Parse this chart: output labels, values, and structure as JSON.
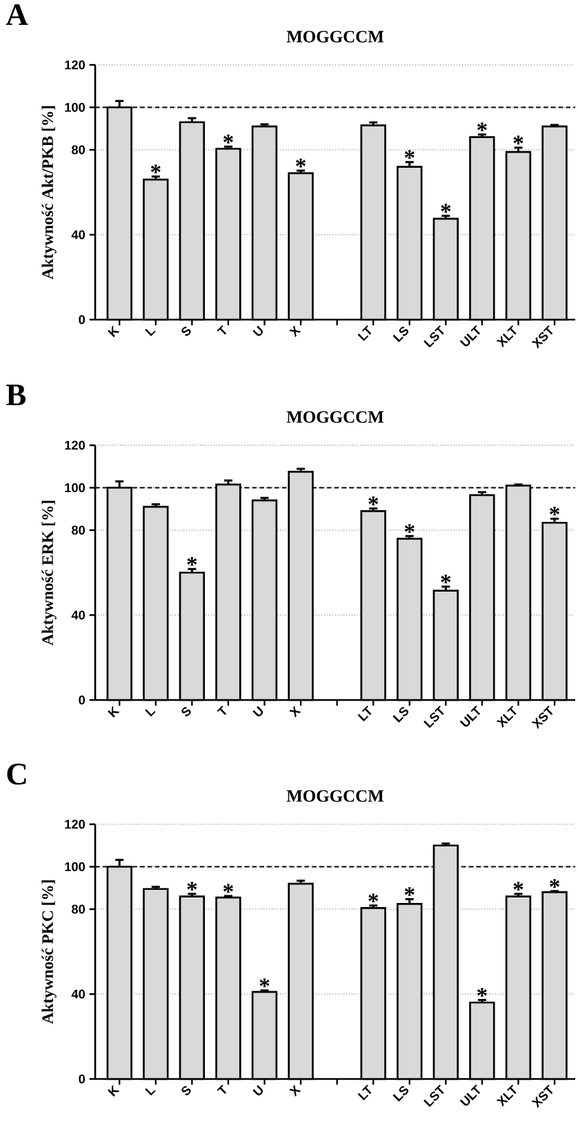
{
  "chart_data": [
    {
      "type": "bar",
      "title": "MOGGCCM",
      "ylabel": "Aktywność Akt/PKB [%]",
      "color": "#d9d9d9",
      "categories": [
        "K",
        "L",
        "S",
        "T",
        "U",
        "X",
        null,
        "LT",
        "LS",
        "LST",
        "ULT",
        "XLT",
        "XST"
      ],
      "values": [
        100,
        66,
        93,
        80.5,
        91,
        69,
        null,
        91.5,
        72,
        47.5,
        86,
        79,
        91
      ],
      "errors": [
        3,
        1.4,
        1.9,
        1,
        1,
        1.2,
        null,
        1.4,
        2.2,
        1.4,
        1.2,
        2,
        0.7
      ],
      "ylim": [
        0,
        120
      ],
      "yticks": [
        0,
        40,
        80,
        100,
        120
      ],
      "grid": "y",
      "ref_lines": [
        {
          "axis": "y",
          "value": 100,
          "line_style": "dashed"
        }
      ],
      "annotations": [
        "A",
        {
          "text": "*",
          "x": "L",
          "y": 67.4
        },
        {
          "text": "*",
          "x": "T",
          "y": 81.5
        },
        {
          "text": "*",
          "x": "X",
          "y": 70.2
        },
        {
          "text": "*",
          "x": "LS",
          "y": 74.2
        },
        {
          "text": "*",
          "x": "LST",
          "y": 48.9
        },
        {
          "text": "*",
          "x": "ULT",
          "y": 87.2
        },
        {
          "text": "*",
          "x": "XLT",
          "y": 81
        }
      ]
    },
    {
      "type": "bar",
      "title": "MOGGCCM",
      "ylabel": "Aktywność ERK [%]",
      "color": "#d9d9d9",
      "categories": [
        "K",
        "L",
        "S",
        "T",
        "U",
        "X",
        null,
        "LT",
        "LS",
        "LST",
        "ULT",
        "XLT",
        "XST"
      ],
      "values": [
        100,
        91,
        60,
        101.5,
        94,
        107.5,
        null,
        89,
        76,
        51.5,
        96.5,
        101,
        83.5
      ],
      "errors": [
        3,
        1.2,
        1.7,
        1.9,
        1.2,
        1.4,
        null,
        1.2,
        1.2,
        1.9,
        1.4,
        0.5,
        1.9
      ],
      "ylim": [
        0,
        120
      ],
      "yticks": [
        0,
        40,
        80,
        100,
        120
      ],
      "grid": "y",
      "ref_lines": [
        {
          "axis": "y",
          "value": 100,
          "line_style": "dashed"
        }
      ],
      "annotations": [
        "B",
        {
          "text": "*",
          "x": "S",
          "y": 61.7
        },
        {
          "text": "*",
          "x": "LT",
          "y": 90.2
        },
        {
          "text": "*",
          "x": "LS",
          "y": 77.2
        },
        {
          "text": "*",
          "x": "LST",
          "y": 53.4
        },
        {
          "text": "*",
          "x": "XST",
          "y": 85.4
        }
      ]
    },
    {
      "type": "bar",
      "title": "MOGGCCM",
      "ylabel": "Aktywność PKC [%]",
      "color": "#d9d9d9",
      "categories": [
        "K",
        "L",
        "S",
        "T",
        "U",
        "X",
        null,
        "LT",
        "LS",
        "LST",
        "ULT",
        "XLT",
        "XST"
      ],
      "values": [
        100,
        89.5,
        86,
        85.5,
        41,
        92,
        null,
        80.5,
        82.5,
        110,
        36,
        86,
        88
      ],
      "errors": [
        3.2,
        1,
        1.2,
        0.7,
        0.7,
        1.4,
        null,
        1.2,
        2.2,
        0.9,
        1.2,
        1.2,
        0.5
      ],
      "ylim": [
        0,
        120
      ],
      "yticks": [
        0,
        40,
        80,
        100,
        120
      ],
      "grid": "y",
      "ref_lines": [
        {
          "axis": "y",
          "value": 100,
          "line_style": "dashed"
        }
      ],
      "annotations": [
        "C",
        {
          "text": "*",
          "x": "S",
          "y": 87.2
        },
        {
          "text": "*",
          "x": "T",
          "y": 86.2
        },
        {
          "text": "*",
          "x": "U",
          "y": 41.7
        },
        {
          "text": "*",
          "x": "LT",
          "y": 81.7
        },
        {
          "text": "*",
          "x": "LS",
          "y": 84.7
        },
        {
          "text": "*",
          "x": "ULT",
          "y": 37.2
        },
        {
          "text": "*",
          "x": "XLT",
          "y": 87.2
        },
        {
          "text": "*",
          "x": "XST",
          "y": 88.5
        }
      ]
    }
  ]
}
